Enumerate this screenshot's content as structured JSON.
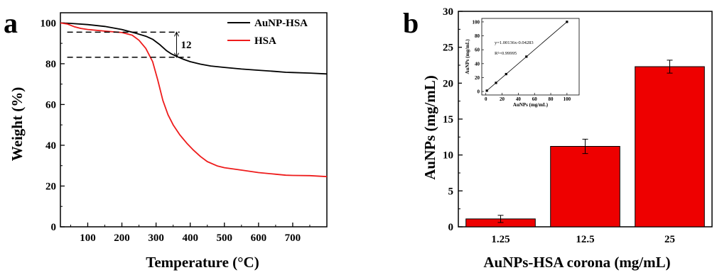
{
  "chart_data": [
    {
      "panel": "a",
      "type": "line",
      "xlabel": "Temperature (°C)",
      "ylabel": "Weight (%)",
      "xlim": [
        20,
        800
      ],
      "ylim": [
        0,
        105
      ],
      "xticks": [
        100,
        200,
        300,
        400,
        500,
        600,
        700
      ],
      "yticks": [
        0,
        20,
        40,
        60,
        80,
        100
      ],
      "legend_position": "top-right",
      "series": [
        {
          "name": "AuNP-HSA",
          "color": "#000000",
          "x": [
            20,
            50,
            100,
            150,
            200,
            240,
            270,
            290,
            310,
            330,
            345,
            360,
            380,
            400,
            430,
            460,
            500,
            550,
            600,
            650,
            680,
            700,
            750,
            800
          ],
          "y": [
            100,
            99.8,
            99.2,
            98.3,
            96.8,
            95.0,
            93.5,
            92.0,
            89.5,
            86.5,
            84.8,
            83.6,
            82.2,
            81.0,
            79.8,
            78.9,
            78.2,
            77.4,
            76.8,
            76.2,
            75.8,
            75.7,
            75.4,
            75.0
          ]
        },
        {
          "name": "HSA",
          "color": "#ee1c1c",
          "x": [
            20,
            40,
            60,
            80,
            100,
            150,
            200,
            230,
            250,
            270,
            290,
            305,
            320,
            335,
            350,
            370,
            390,
            410,
            430,
            450,
            480,
            500,
            550,
            600,
            650,
            680,
            700,
            750,
            800
          ],
          "y": [
            100,
            99.5,
            98.2,
            97.3,
            96.8,
            96.0,
            95.3,
            94.0,
            91.5,
            87.5,
            81.0,
            72.0,
            62.0,
            55.0,
            50.0,
            45.0,
            41.0,
            37.5,
            34.5,
            32.0,
            29.8,
            29.0,
            27.8,
            26.6,
            25.8,
            25.3,
            25.2,
            25.1,
            24.6
          ]
        }
      ],
      "annotation": {
        "label": "12",
        "upper_level": 95.5,
        "lower_level": 83.2,
        "x_from": 40,
        "x_to": 400,
        "arrow_x": 360
      }
    },
    {
      "panel": "b",
      "type": "bar",
      "xlabel": "AuNPs-HSA corona (mg/mL)",
      "ylabel": "AuNPs (mg/mL)",
      "ylim": [
        0,
        30
      ],
      "yticks": [
        0,
        5,
        10,
        15,
        20,
        25,
        30
      ],
      "categories": [
        "1.25",
        "12.5",
        "25"
      ],
      "values": [
        1.1,
        11.2,
        22.3
      ],
      "errors": [
        0.5,
        1.0,
        0.9
      ],
      "bar_color": "#ee0000",
      "inset": {
        "type": "scatter",
        "xlabel": "AuNPs (mg/mL)",
        "ylabel": "AuNPs (mg/mL)",
        "xlim": [
          -5,
          115
        ],
        "ylim": [
          -5,
          105
        ],
        "xticks": [
          0,
          20,
          40,
          60,
          80,
          100
        ],
        "yticks": [
          0,
          20,
          40,
          60,
          80,
          100
        ],
        "equation": "y=1.00136x-0.04283",
        "r2": "R²=0.99995",
        "x": [
          1.25,
          12.5,
          25,
          50,
          100
        ],
        "y": [
          1.2,
          12.4,
          25.0,
          50.1,
          100.1
        ]
      }
    }
  ]
}
